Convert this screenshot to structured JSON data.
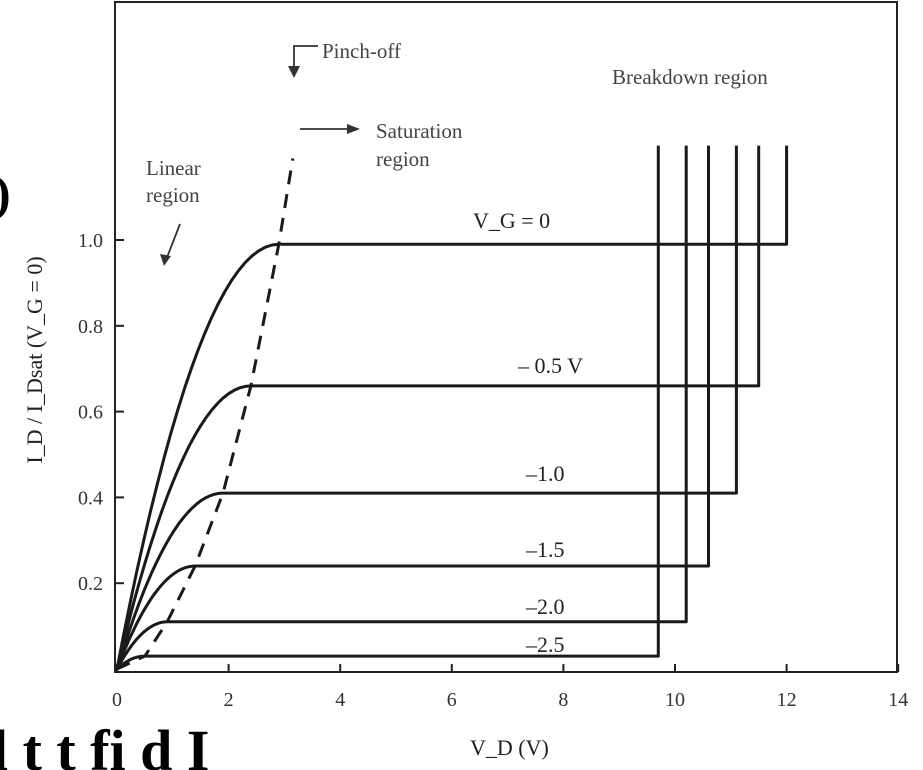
{
  "chart_data": {
    "type": "line",
    "title": "",
    "xlabel": "V_D (V)",
    "ylabel": "I_D / I_Dsat (V_G = 0)",
    "xlim": [
      0,
      14
    ],
    "ylim": [
      0,
      1.3
    ],
    "x_ticks": [
      "0",
      "2",
      "4",
      "6",
      "8",
      "10",
      "12",
      "14"
    ],
    "y_ticks": [
      "0.2",
      "0.4",
      "0.6",
      "0.8",
      "1.0"
    ],
    "grid": false,
    "series": [
      {
        "name": "V_G = 0",
        "label": "V_G = 0",
        "sat": 0.99,
        "vknee": 2.9,
        "vbreak": 12.0,
        "breakdown_top": 1.22
      },
      {
        "name": "– 0.5 V",
        "label": "– 0.5 V",
        "sat": 0.66,
        "vknee": 2.4,
        "vbreak": 11.5,
        "breakdown_top": 1.22
      },
      {
        "name": "–1.0",
        "label": "–1.0",
        "sat": 0.41,
        "vknee": 1.9,
        "vbreak": 11.1,
        "breakdown_top": 1.22
      },
      {
        "name": "–1.5",
        "label": "–1.5",
        "sat": 0.24,
        "vknee": 1.4,
        "vbreak": 10.6,
        "breakdown_top": 1.22
      },
      {
        "name": "–2.0",
        "label": "–2.0",
        "sat": 0.11,
        "vknee": 0.9,
        "vbreak": 10.2,
        "breakdown_top": 1.22
      },
      {
        "name": "–2.5",
        "label": "–2.5",
        "sat": 0.03,
        "vknee": 0.5,
        "vbreak": 9.7,
        "breakdown_top": 1.22
      }
    ],
    "pinch_off_locus": {
      "x": [
        0,
        0.5,
        0.9,
        1.4,
        1.9,
        2.4,
        2.9,
        3.15
      ],
      "y": [
        0,
        0.03,
        0.11,
        0.24,
        0.41,
        0.66,
        0.99,
        1.19
      ]
    },
    "annotations": {
      "pinch_off": "Pinch-off",
      "saturation_1": "Saturation",
      "saturation_2": "region",
      "linear_1": "Linear",
      "linear_2": "region",
      "breakdown": "Breakdown region"
    }
  },
  "overlay": {
    "left_fragment_1": ")",
    "bottom_fragment": "l  t   t    fi   d  I"
  }
}
